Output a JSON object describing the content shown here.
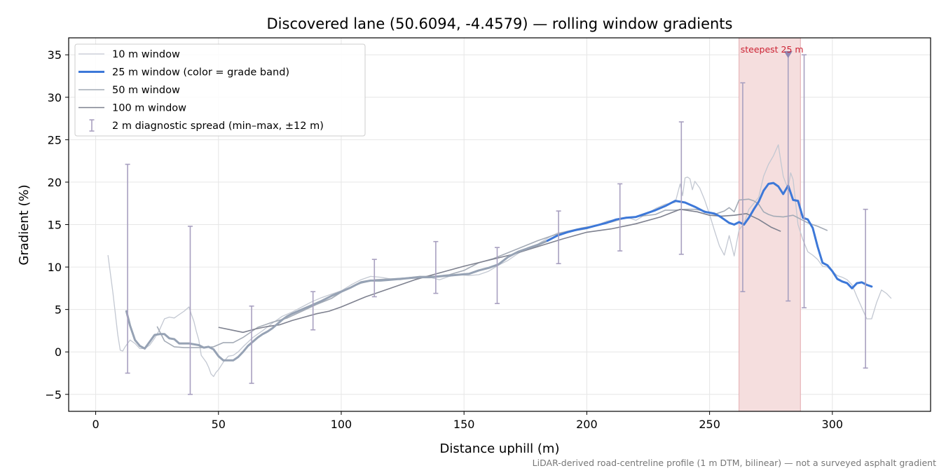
{
  "chart_data": {
    "type": "line",
    "title": "Discovered lane (50.6094, -4.4579) — rolling window gradients",
    "xlabel": "Distance uphill (m)",
    "ylabel": "Gradient (%)",
    "xlim": [
      -11,
      340
    ],
    "ylim": [
      -7,
      37
    ],
    "xticks": [
      0,
      50,
      100,
      150,
      200,
      250,
      300
    ],
    "yticks": [
      -5,
      0,
      5,
      10,
      15,
      20,
      25,
      30,
      35
    ],
    "grid": true,
    "legend_position": "top-left",
    "footnote": "LiDAR-derived road-centreline profile (1 m DTM, bilinear) — not a surveyed asphalt gradient",
    "colors": {
      "w10": "#c3c8d2",
      "w25_low": "#96a2b4",
      "w25_high": "#3d78d8",
      "w50": "#a4abb6",
      "w100": "#7e818f",
      "errorbar": "#a8a0c0",
      "highlight": "#f5dede",
      "highlight_edge": "#e3a9ae",
      "annotation": "#cc2233",
      "marker": "#8f86b2"
    },
    "legend": [
      {
        "key": "w10",
        "label": "10 m window"
      },
      {
        "key": "w25",
        "label": "25 m window (color = grade band)"
      },
      {
        "key": "w50",
        "label": "50 m window"
      },
      {
        "key": "w100",
        "label": "100 m window"
      },
      {
        "key": "err",
        "label": "2 m diagnostic spread (min–max, ±12 m)"
      }
    ],
    "highlight_band": {
      "x0": 262,
      "x1": 287
    },
    "annotation": {
      "label": "steepest 25 m",
      "x": 282,
      "y": 35.1
    },
    "series": [
      {
        "key": "w10",
        "name": "10 m window",
        "x": [
          5,
          7,
          9,
          10,
          11,
          12,
          14,
          16,
          18,
          20,
          22,
          24,
          26,
          28,
          30,
          32,
          34,
          36,
          38,
          39,
          40,
          41,
          42,
          43,
          44,
          45,
          46,
          47,
          48,
          49,
          50,
          52,
          54,
          56,
          58,
          60,
          64,
          68,
          72,
          76,
          80,
          84,
          88,
          92,
          96,
          100,
          104,
          108,
          112,
          116,
          120,
          124,
          128,
          132,
          136,
          140,
          144,
          148,
          152,
          156,
          160,
          164,
          168,
          172,
          176,
          180,
          184,
          188,
          192,
          196,
          200,
          204,
          208,
          212,
          216,
          220,
          224,
          228,
          232,
          236,
          238,
          239,
          240,
          241,
          242,
          243,
          244,
          246,
          248,
          250,
          252,
          254,
          256,
          258,
          260,
          262,
          264,
          266,
          268,
          270,
          272,
          274,
          276,
          278,
          279,
          280,
          281,
          282,
          283,
          284,
          286,
          288,
          290,
          292,
          294,
          296,
          298,
          300,
          302,
          304,
          306,
          308,
          310,
          312,
          314,
          316,
          318,
          320,
          322,
          324
        ],
        "y": [
          11.4,
          7,
          2,
          0.2,
          0.1,
          0.6,
          1.4,
          1,
          0.4,
          0.4,
          0.8,
          1.6,
          2.6,
          3.9,
          4.1,
          4,
          4.4,
          4.8,
          5.3,
          4.4,
          3.6,
          2.4,
          1.4,
          -0.4,
          -0.8,
          -1.2,
          -1.8,
          -2.6,
          -2.9,
          -2.4,
          -2.1,
          -1.2,
          -0.5,
          -0.4,
          0,
          0.6,
          1.7,
          2.5,
          3.4,
          4.2,
          4.7,
          5.3,
          5.9,
          6.4,
          6.8,
          7.2,
          7.9,
          8.5,
          8.9,
          8.8,
          8.6,
          8.5,
          8.7,
          8.9,
          8.8,
          8.5,
          8.9,
          9.1,
          9.0,
          9.1,
          9.5,
          10.2,
          10.8,
          11.6,
          12.3,
          12.7,
          13.4,
          14.0,
          14.2,
          14.3,
          14.5,
          14.9,
          15.4,
          15.6,
          15.9,
          15.5,
          16.2,
          16.9,
          17.4,
          17.6,
          19.8,
          18.4,
          20.5,
          20.6,
          20.4,
          19.1,
          20.1,
          19.3,
          17.9,
          16.2,
          14.3,
          12.5,
          11.4,
          13.7,
          11.3,
          14.4,
          15.1,
          16.8,
          17.5,
          18.2,
          20.7,
          22.1,
          23.1,
          24.4,
          22.5,
          20.7,
          19.9,
          19.3,
          21.1,
          20.3,
          15.0,
          13.2,
          11.8,
          11.4,
          10.9,
          10.1,
          10.0,
          9.5,
          9.0,
          8.8,
          8.5,
          7.9,
          6.5,
          5.2,
          3.9,
          3.9,
          5.8,
          7.3,
          6.9,
          6.3
        ]
      },
      {
        "key": "w50",
        "name": "50 m window",
        "x": [
          25,
          28,
          32,
          36,
          40,
          44,
          48,
          52,
          56,
          60,
          66,
          72,
          78,
          84,
          90,
          96,
          102,
          108,
          114,
          120,
          126,
          132,
          138,
          144,
          150,
          156,
          162,
          168,
          174,
          180,
          186,
          192,
          198,
          204,
          210,
          216,
          222,
          228,
          232,
          236,
          240,
          244,
          248,
          252,
          256,
          258,
          260,
          262,
          266,
          268,
          270,
          272,
          274,
          276,
          280,
          284,
          288,
          290,
          294,
          298
        ],
        "y": [
          3.0,
          1.3,
          0.6,
          0.5,
          0.5,
          0.5,
          0.6,
          1.1,
          1.1,
          1.7,
          2.9,
          3.5,
          4.0,
          4.8,
          5.6,
          6.3,
          7.4,
          8.1,
          8.5,
          8.6,
          8.7,
          8.9,
          8.9,
          9.1,
          9.6,
          10.5,
          11.0,
          11.7,
          12.4,
          13.1,
          13.7,
          14.2,
          14.6,
          14.9,
          15.3,
          15.8,
          16.0,
          16.2,
          16.7,
          16.7,
          16.8,
          16.8,
          16.6,
          16.2,
          16.6,
          17.0,
          16.5,
          17.9,
          18.0,
          17.8,
          17.4,
          16.5,
          16.2,
          16.0,
          15.9,
          16.1,
          15.5,
          15.2,
          14.8,
          14.3
        ]
      },
      {
        "key": "w100",
        "name": "100 m window",
        "x": [
          50,
          55,
          60,
          65,
          70,
          75,
          80,
          85,
          90,
          95,
          100,
          110,
          120,
          130,
          140,
          150,
          160,
          170,
          180,
          190,
          200,
          210,
          220,
          230,
          238,
          245,
          250,
          255,
          260,
          265,
          270,
          275,
          279
        ],
        "y": [
          2.9,
          2.6,
          2.3,
          2.7,
          3.0,
          3.2,
          3.7,
          4.1,
          4.5,
          4.8,
          5.3,
          6.5,
          7.5,
          8.5,
          9.3,
          10.1,
          10.8,
          11.5,
          12.4,
          13.3,
          14.1,
          14.5,
          15.1,
          15.9,
          16.8,
          16.5,
          16.1,
          16.0,
          16.1,
          16.3,
          15.6,
          14.7,
          14.2
        ]
      },
      {
        "key": "w25",
        "name": "25 m window (color = grade band)",
        "steep_from_x": 182,
        "x": [
          12.5,
          14,
          16,
          18,
          20,
          22,
          24,
          26,
          28,
          30,
          32,
          34,
          36,
          38,
          40,
          42,
          44,
          46,
          48,
          50,
          52,
          54,
          56,
          58,
          60,
          62,
          64,
          66,
          68,
          70,
          72,
          74,
          76,
          78,
          80,
          84,
          88,
          92,
          96,
          100,
          104,
          108,
          112,
          116,
          120,
          124,
          128,
          132,
          136,
          140,
          144,
          148,
          152,
          156,
          160,
          164,
          168,
          172,
          176,
          180,
          184,
          188,
          192,
          196,
          200,
          204,
          208,
          212,
          216,
          220,
          224,
          228,
          232,
          236,
          240,
          244,
          248,
          252,
          254,
          256,
          258,
          260,
          262,
          264,
          266,
          268,
          270,
          272,
          274,
          276,
          278,
          280,
          282,
          284,
          286,
          288,
          290,
          292,
          294,
          296,
          298,
          300,
          302,
          304,
          306,
          308,
          310,
          312,
          314,
          316
        ],
        "y": [
          4.8,
          3.1,
          1.4,
          0.7,
          0.4,
          1.2,
          2.0,
          2.1,
          2.1,
          1.6,
          1.5,
          1.0,
          1.0,
          1.0,
          0.9,
          0.8,
          0.5,
          0.6,
          0.3,
          -0.5,
          -1.0,
          -1.0,
          -1.0,
          -0.6,
          0.0,
          0.7,
          1.2,
          1.7,
          2.1,
          2.4,
          2.8,
          3.3,
          3.8,
          4.2,
          4.5,
          5.0,
          5.5,
          6.0,
          6.6,
          7.1,
          7.6,
          8.2,
          8.4,
          8.4,
          8.5,
          8.6,
          8.7,
          8.8,
          8.8,
          8.9,
          9.0,
          9.1,
          9.2,
          9.6,
          9.9,
          10.3,
          11.2,
          11.8,
          12.2,
          12.6,
          13.1,
          13.7,
          14.1,
          14.4,
          14.6,
          14.9,
          15.2,
          15.6,
          15.8,
          15.9,
          16.3,
          16.7,
          17.2,
          17.8,
          17.6,
          17.1,
          16.5,
          16.3,
          16.0,
          15.6,
          15.2,
          15.0,
          15.3,
          15.0,
          15.8,
          16.8,
          17.7,
          19.0,
          19.8,
          19.9,
          19.5,
          18.6,
          19.6,
          17.9,
          17.8,
          15.8,
          15.6,
          14.6,
          12.4,
          10.5,
          10.2,
          9.5,
          8.6,
          8.3,
          8.1,
          7.5,
          8.1,
          8.2,
          7.9,
          7.7
        ]
      }
    ],
    "error_bars": [
      {
        "x": 13,
        "min": -2.5,
        "max": 22.1
      },
      {
        "x": 38.5,
        "min": -5.0,
        "max": 14.8
      },
      {
        "x": 63.5,
        "min": -3.7,
        "max": 5.4
      },
      {
        "x": 88.5,
        "min": 2.6,
        "max": 7.1
      },
      {
        "x": 113.5,
        "min": 6.5,
        "max": 10.9
      },
      {
        "x": 138.5,
        "min": 6.9,
        "max": 13.0
      },
      {
        "x": 163.5,
        "min": 5.7,
        "max": 12.3
      },
      {
        "x": 188.5,
        "min": 10.4,
        "max": 16.6
      },
      {
        "x": 213.5,
        "min": 11.9,
        "max": 19.8
      },
      {
        "x": 238.5,
        "min": 11.5,
        "max": 27.1
      },
      {
        "x": 263.5,
        "min": 7.1,
        "max": 31.7
      },
      {
        "x": 282,
        "min": 6.0,
        "max": 35.1
      },
      {
        "x": 288.5,
        "min": 5.2,
        "max": 35.0
      },
      {
        "x": 313.5,
        "min": -1.9,
        "max": 16.8
      }
    ]
  }
}
